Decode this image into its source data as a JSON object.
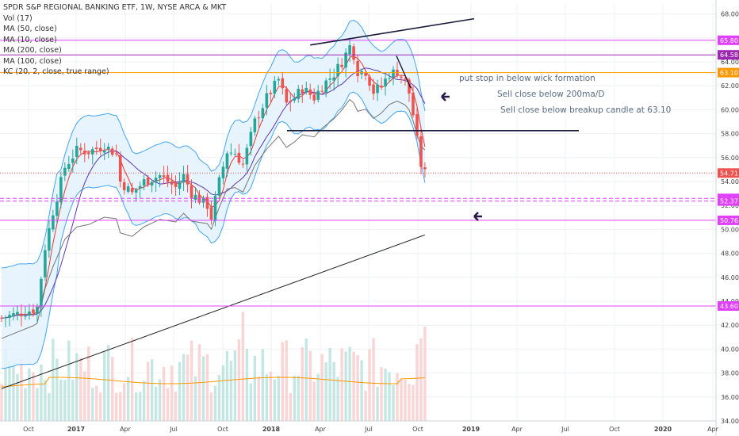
{
  "legend": {
    "title": "SPDR S&P REGIONAL BANKING ETF, 1W, NYSE ARCA & MKT",
    "lines": [
      "Vol (17)",
      "MA (50, close)",
      "MA (10, close)",
      "MA (200, close)",
      "MA (100, close)",
      "KC (20, 2, close, true range)"
    ]
  },
  "annotations": {
    "note1": "put stop in below wick formation",
    "note2": "Sell close below 200ma/D",
    "note3": "Sell close below breakup candle at 63.10"
  },
  "chart_data": {
    "type": "candlestick",
    "title": "SPDR S&P REGIONAL BANKING ETF, 1W, NYSE ARCA & MKT",
    "ylim": [
      34,
      68.9
    ],
    "y_ticks": [
      "68.00",
      "66.00",
      "64.00",
      "62.00",
      "60.00",
      "58.00",
      "56.00",
      "54.00",
      "52.00",
      "50.00",
      "48.00",
      "46.00",
      "44.00",
      "42.00",
      "40.00",
      "38.00",
      "36.00",
      "34.00"
    ],
    "x_ticks": [
      "Oct",
      "2017",
      "Apr",
      "Jul",
      "Oct",
      "2018",
      "Apr",
      "Jul",
      "Oct",
      "2019",
      "Apr",
      "Jul",
      "Oct",
      "2020",
      "Apr"
    ],
    "grid": true,
    "last_price": 54.71,
    "horizontal_levels": [
      {
        "value": 65.8,
        "label": "65.80",
        "color": "#e040fb"
      },
      {
        "value": 64.58,
        "label": "64.58",
        "color": "#9c27b0"
      },
      {
        "value": 63.1,
        "label": "63.10",
        "color": "#ff9800"
      },
      {
        "value": 54.71,
        "label": "54.71",
        "color": "#ef5350"
      },
      {
        "value": 52.59,
        "label": "52.59",
        "color": "#e040fb"
      },
      {
        "value": 52.37,
        "label": "52.37",
        "color": "#e040fb"
      },
      {
        "value": 50.76,
        "label": "50.76",
        "color": "#e040fb"
      },
      {
        "value": 43.6,
        "label": "43.60",
        "color": "#e040fb"
      }
    ],
    "colors": {
      "up": "#26a69a",
      "down": "#ef5350",
      "ma10": "#e53935",
      "ma50": "#5e35b1",
      "ma100": "#757575",
      "ma200": "#212121",
      "kc": "#42a5f5",
      "kc_fill": "#e3f2fd",
      "vol_ma": "#ff9800"
    }
  }
}
